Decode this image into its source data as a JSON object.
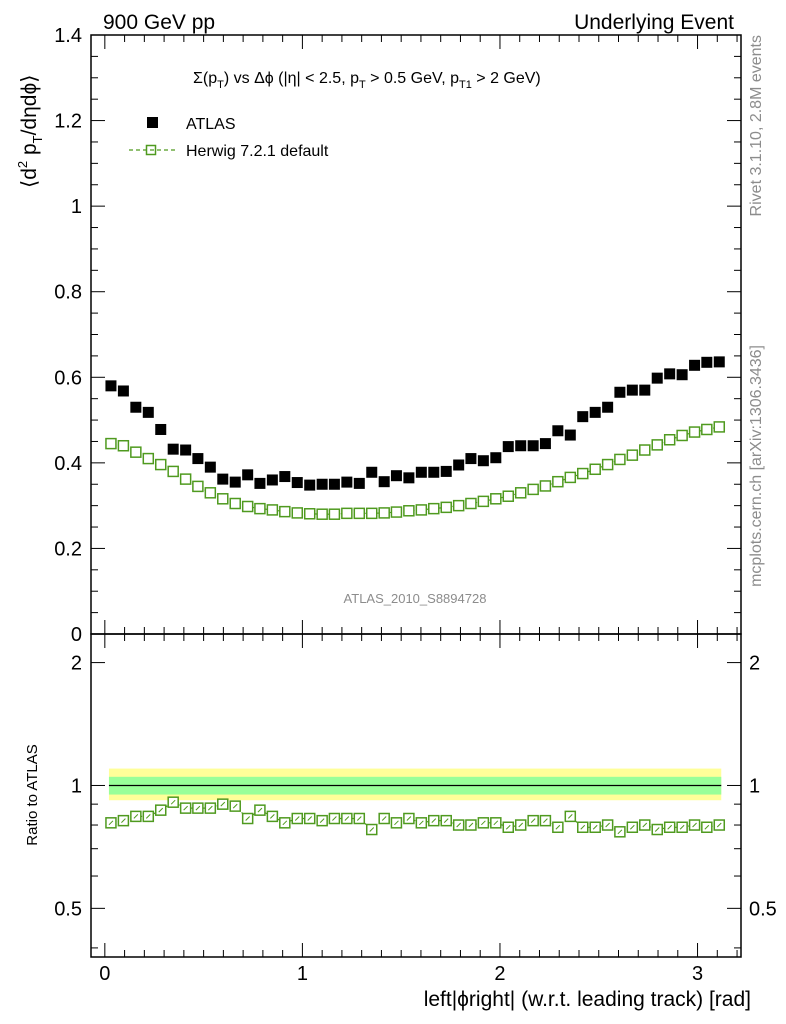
{
  "header": {
    "left": "900 GeV pp",
    "right": "Underlying Event"
  },
  "title_parts": {
    "sigma": "Σ(p",
    "t1": "T",
    "vs": ") vs Δϕ (|η| < 2.5, p",
    "t2": "T",
    "cut1": " > 0.5 GeV, p",
    "t3": "T1",
    "cut2": " > 2 GeV)"
  },
  "ylabel_parts": {
    "open": "⟨d",
    "sup": "2",
    "p": " p",
    "sub": "T",
    "rest": "/dηdϕ⟩"
  },
  "side_labels": {
    "rivet": "Rivet 3.1.10,  2.8M events",
    "mcplots": "mcplots.cern.ch [arXiv:1306.3436]"
  },
  "watermark": "ATLAS_2010_S8894728",
  "legend": {
    "data_label": "ATLAS",
    "mc_label": "Herwig 7.2.1 default"
  },
  "ratio_ylabel": "Ratio to ATLAS",
  "xlabel": "left|ϕright| (w.r.t. leading track) [rad]",
  "colors": {
    "data": "#000000",
    "mc": "#4f9a1f",
    "band_outer": "#ffff99",
    "band_inner": "#99ff99"
  },
  "chart_data": {
    "type": "scatter",
    "title": "Σ(pT) vs Δϕ (|η| < 2.5, pT > 0.5 GeV, pT1 > 2 GeV)",
    "xlabel": "left|ϕright| (w.r.t. leading track) [rad]",
    "ylabel": "⟨d2 pT/dηdϕ⟩",
    "xlim": [
      -0.07,
      3.22
    ],
    "ylim": [
      0,
      1.4
    ],
    "ratio_ylim": [
      0.38,
      2.35
    ],
    "x_ticks": [
      0,
      1,
      2,
      3
    ],
    "y_ticks": [
      0,
      0.2,
      0.4,
      0.6,
      0.8,
      1,
      1.2,
      1.4
    ],
    "y_tick_labels": [
      "0",
      "0.2",
      "0.4",
      "0.6",
      "0.8",
      "1",
      "1.2",
      "1.4"
    ],
    "ratio_ticks": [
      0.5,
      1,
      2
    ],
    "ratio_tick_labels": [
      "0.5",
      "1",
      "2"
    ],
    "x_tick_labels": [
      "0",
      "1",
      "2",
      "3"
    ],
    "ratio_band_inner": [
      0.95,
      1.05
    ],
    "ratio_band_outer": [
      0.92,
      1.1
    ],
    "x": [
      0.031,
      0.094,
      0.157,
      0.22,
      0.283,
      0.346,
      0.409,
      0.471,
      0.534,
      0.597,
      0.66,
      0.723,
      0.785,
      0.848,
      0.911,
      0.974,
      1.037,
      1.1,
      1.162,
      1.225,
      1.288,
      1.351,
      1.414,
      1.476,
      1.539,
      1.602,
      1.665,
      1.728,
      1.791,
      1.853,
      1.916,
      1.979,
      2.042,
      2.105,
      2.168,
      2.23,
      2.293,
      2.356,
      2.419,
      2.482,
      2.545,
      2.607,
      2.67,
      2.733,
      2.796,
      2.859,
      2.922,
      2.985,
      3.047,
      3.11
    ],
    "series": [
      {
        "name": "ATLAS",
        "values": [
          0.58,
          0.568,
          0.53,
          0.518,
          0.478,
          0.432,
          0.43,
          0.41,
          0.39,
          0.362,
          0.355,
          0.372,
          0.352,
          0.36,
          0.368,
          0.354,
          0.348,
          0.35,
          0.35,
          0.355,
          0.352,
          0.378,
          0.356,
          0.37,
          0.365,
          0.378,
          0.378,
          0.38,
          0.395,
          0.41,
          0.405,
          0.412,
          0.438,
          0.44,
          0.44,
          0.445,
          0.475,
          0.465,
          0.508,
          0.518,
          0.53,
          0.565,
          0.57,
          0.57,
          0.598,
          0.608,
          0.606,
          0.628,
          0.635,
          0.636
        ]
      },
      {
        "name": "Herwig 7.2.1 default",
        "values": [
          0.445,
          0.44,
          0.425,
          0.41,
          0.396,
          0.38,
          0.362,
          0.345,
          0.33,
          0.316,
          0.305,
          0.298,
          0.293,
          0.29,
          0.286,
          0.283,
          0.281,
          0.28,
          0.28,
          0.282,
          0.282,
          0.282,
          0.283,
          0.285,
          0.288,
          0.29,
          0.293,
          0.296,
          0.3,
          0.305,
          0.31,
          0.316,
          0.322,
          0.33,
          0.338,
          0.346,
          0.356,
          0.366,
          0.375,
          0.385,
          0.396,
          0.408,
          0.418,
          0.43,
          0.442,
          0.454,
          0.464,
          0.472,
          0.478,
          0.484
        ]
      }
    ],
    "ratio": [
      0.81,
      0.82,
      0.84,
      0.84,
      0.87,
      0.91,
      0.88,
      0.88,
      0.88,
      0.9,
      0.89,
      0.83,
      0.87,
      0.84,
      0.81,
      0.83,
      0.83,
      0.82,
      0.83,
      0.83,
      0.83,
      0.78,
      0.83,
      0.81,
      0.83,
      0.81,
      0.82,
      0.82,
      0.8,
      0.8,
      0.81,
      0.81,
      0.79,
      0.8,
      0.82,
      0.82,
      0.79,
      0.84,
      0.79,
      0.79,
      0.8,
      0.77,
      0.79,
      0.8,
      0.78,
      0.79,
      0.79,
      0.8,
      0.79,
      0.8
    ]
  }
}
